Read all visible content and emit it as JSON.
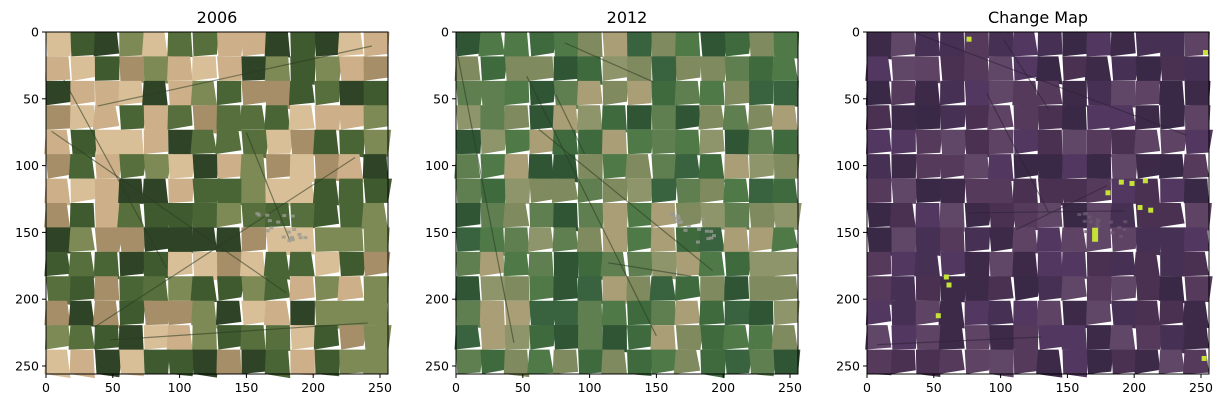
{
  "figure": {
    "panels": [
      {
        "id": "p2006",
        "title": "2006",
        "image_description": "aerial patchwork of tan, olive and dark green fields with a small village right of center",
        "x_ticks": [
          "0",
          "50",
          "100",
          "150",
          "200",
          "250"
        ],
        "y_ticks": [
          "0",
          "50",
          "100",
          "150",
          "200",
          "250"
        ],
        "palette": [
          "#cdb089",
          "#d8bf98",
          "#3f5a2f",
          "#566f3c",
          "#7d8a55",
          "#2f4326",
          "#a68f68",
          "#4a6535"
        ]
      },
      {
        "id": "p2012",
        "title": "2012",
        "image_description": "aerial patchwork of mostly green fields with scattered tan parcels and a village right of center",
        "x_ticks": [
          "0",
          "50",
          "100",
          "150",
          "200",
          "250"
        ],
        "y_ticks": [
          "0",
          "50",
          "100",
          "150",
          "200",
          "250"
        ],
        "palette": [
          "#3e6a3e",
          "#4f7a48",
          "#2f5534",
          "#7f8a5e",
          "#a99e76",
          "#5f7f50",
          "#39623f",
          "#8e956b"
        ]
      },
      {
        "id": "pchange",
        "title": "Change Map",
        "image_description": "purple tinted overlay of the scene with small yellow-green change patches",
        "x_ticks": [
          "0",
          "50",
          "100",
          "150",
          "200",
          "250"
        ],
        "y_ticks": [
          "0",
          "50",
          "100",
          "150",
          "200",
          "250"
        ],
        "palette": [
          "#4a3152",
          "#553a5c",
          "#3d2a49",
          "#5e4364",
          "#463053",
          "#523760",
          "#3a2946",
          "#604767"
        ],
        "change_color": "#c5e337",
        "change_patches": [
          {
            "x": 76,
            "y": 5
          },
          {
            "x": 253,
            "y": 15
          },
          {
            "x": 190,
            "y": 112
          },
          {
            "x": 198,
            "y": 113
          },
          {
            "x": 180,
            "y": 120
          },
          {
            "x": 208,
            "y": 111
          },
          {
            "x": 204,
            "y": 131
          },
          {
            "x": 212,
            "y": 133
          },
          {
            "x": 170,
            "y": 148
          },
          {
            "x": 59,
            "y": 183
          },
          {
            "x": 61,
            "y": 189
          },
          {
            "x": 53,
            "y": 212
          },
          {
            "x": 252,
            "y": 244
          }
        ]
      }
    ],
    "axis_range": [
      0,
      256
    ]
  }
}
